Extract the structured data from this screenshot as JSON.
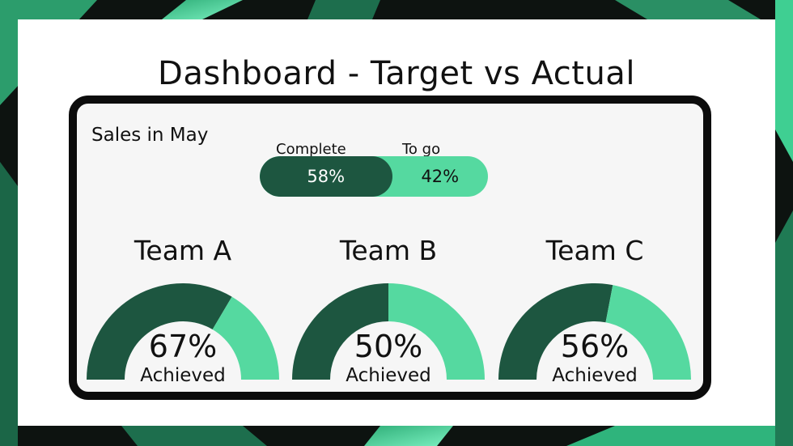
{
  "title": "Dashboard - Target vs Actual",
  "colors": {
    "dark": "#1d5640",
    "light": "#55d9a0",
    "frame": "#0c0c0c"
  },
  "sales": {
    "label": "Sales in May",
    "complete_label": "Complete",
    "togo_label": "To go",
    "complete_pct": "58%",
    "togo_pct": "42%",
    "complete_value": 58
  },
  "chart_data": [
    {
      "type": "bar",
      "title": "Sales in May",
      "categories": [
        "Complete",
        "To go"
      ],
      "values": [
        58,
        42
      ],
      "unit": "%"
    },
    {
      "type": "pie",
      "title": "",
      "categories": [
        "Team A",
        "Team B",
        "Team C"
      ],
      "series": [
        {
          "name": "Achieved",
          "values": [
            67,
            50,
            56
          ]
        }
      ],
      "unit": "%"
    }
  ],
  "teams": [
    {
      "name": "Team A",
      "value": 67,
      "pct": "67%",
      "sub": "Achieved"
    },
    {
      "name": "Team B",
      "value": 50,
      "pct": "50%",
      "sub": "Achieved"
    },
    {
      "name": "Team C",
      "value": 56,
      "pct": "56%",
      "sub": "Achieved"
    }
  ]
}
